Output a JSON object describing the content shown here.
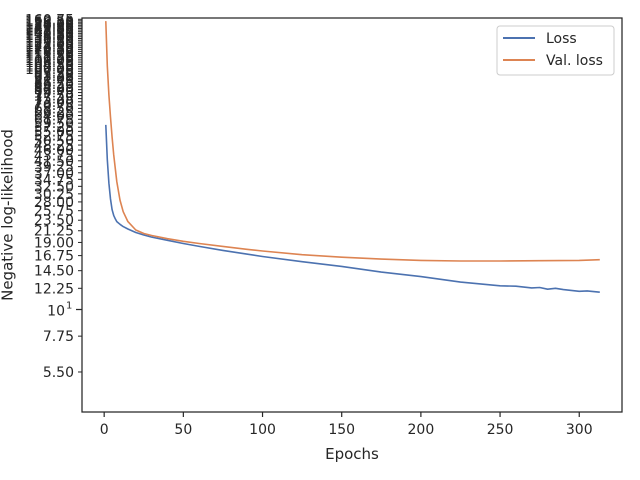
{
  "chart_data": {
    "type": "line",
    "title": "",
    "xlabel": "Epochs",
    "ylabel": "Negative log-likelihood",
    "xscale": "linear",
    "yscale": "log",
    "xlim": [
      -14,
      327
    ],
    "ylim": [
      3.75,
      162.75
    ],
    "xticks": [
      {
        "value": 0,
        "label": "0"
      },
      {
        "value": 50,
        "label": "50"
      },
      {
        "value": 100,
        "label": "100"
      },
      {
        "value": 150,
        "label": "150"
      },
      {
        "value": 200,
        "label": "200"
      },
      {
        "value": 250,
        "label": "250"
      },
      {
        "value": 300,
        "label": "300"
      }
    ],
    "yticks": [
      {
        "value": 5.5,
        "label": "5.50"
      },
      {
        "value": 7.75,
        "label": "7.75"
      },
      {
        "value": 12.25,
        "label": "12.25"
      },
      {
        "value": 14.5,
        "label": "14.50"
      },
      {
        "value": 16.75,
        "label": "16.75"
      },
      {
        "value": 19.0,
        "label": "19.00"
      },
      {
        "value": 21.25,
        "label": "21.25"
      },
      {
        "value": 23.5,
        "label": "23.50"
      },
      {
        "value": 25.75,
        "label": "25.75"
      },
      {
        "value": 28.0,
        "label": "28.00"
      },
      {
        "value": 30.25,
        "label": "30.25"
      },
      {
        "value": 32.5,
        "label": "32.50"
      },
      {
        "value": 34.75,
        "label": "34.75"
      },
      {
        "value": 37.0,
        "label": "37.00"
      },
      {
        "value": 39.25,
        "label": "39.25"
      },
      {
        "value": 41.5,
        "label": "41.50"
      },
      {
        "value": 43.75,
        "label": "43.75"
      },
      {
        "value": 46.0,
        "label": "46.00"
      },
      {
        "value": 48.25,
        "label": "48.25"
      },
      {
        "value": 50.5,
        "label": "50.50"
      },
      {
        "value": 52.75,
        "label": "52.75"
      },
      {
        "value": 55.0,
        "label": "55.00"
      },
      {
        "value": 57.25,
        "label": "57.25"
      },
      {
        "value": 59.5,
        "label": "59.50"
      },
      {
        "value": 61.75,
        "label": "61.75"
      },
      {
        "value": 64.0,
        "label": "64.00"
      },
      {
        "value": 66.25,
        "label": "66.25"
      },
      {
        "value": 68.5,
        "label": "68.50"
      },
      {
        "value": 70.75,
        "label": "70.75"
      },
      {
        "value": 73.0,
        "label": "73.00"
      },
      {
        "value": 75.25,
        "label": "75.25"
      },
      {
        "value": 77.5,
        "label": "77.50"
      },
      {
        "value": 79.75,
        "label": "79.75"
      },
      {
        "value": 82.0,
        "label": "82.00"
      },
      {
        "value": 84.25,
        "label": "84.25"
      },
      {
        "value": 86.5,
        "label": "86.50"
      },
      {
        "value": 88.75,
        "label": "88.75"
      },
      {
        "value": 91.0,
        "label": "91.00"
      },
      {
        "value": 93.25,
        "label": "93.25"
      },
      {
        "value": 95.5,
        "label": "95.50"
      },
      {
        "value": 97.75,
        "label": "97.75"
      },
      {
        "value": 100.0,
        "label": "100.00"
      },
      {
        "value": 102.25,
        "label": "102.25"
      },
      {
        "value": 104.5,
        "label": "104.50"
      },
      {
        "value": 106.75,
        "label": "106.75"
      },
      {
        "value": 109.0,
        "label": "109.00"
      },
      {
        "value": 111.25,
        "label": "111.25"
      },
      {
        "value": 113.5,
        "label": "113.50"
      },
      {
        "value": 115.75,
        "label": "115.75"
      },
      {
        "value": 118.0,
        "label": "118.00"
      },
      {
        "value": 120.25,
        "label": "120.25"
      },
      {
        "value": 122.5,
        "label": "122.50"
      },
      {
        "value": 124.75,
        "label": "124.75"
      },
      {
        "value": 127.0,
        "label": "127.00"
      },
      {
        "value": 129.25,
        "label": "129.25"
      },
      {
        "value": 131.5,
        "label": "131.50"
      },
      {
        "value": 133.75,
        "label": "133.75"
      },
      {
        "value": 136.0,
        "label": "136.00"
      },
      {
        "value": 138.25,
        "label": "138.25"
      },
      {
        "value": 140.5,
        "label": "140.50"
      },
      {
        "value": 142.75,
        "label": "142.75"
      },
      {
        "value": 145.0,
        "label": "145.00"
      },
      {
        "value": 147.25,
        "label": "147.25"
      },
      {
        "value": 149.5,
        "label": "149.50"
      },
      {
        "value": 151.75,
        "label": "151.75"
      },
      {
        "value": 154.0,
        "label": "154.00"
      },
      {
        "value": 156.25,
        "label": "156.25"
      },
      {
        "value": 158.5,
        "label": "158.50"
      },
      {
        "value": 160.75,
        "label": "160.75"
      }
    ],
    "y_decade_label": {
      "value": 10,
      "base": "10",
      "exponent": "1"
    },
    "grid": false,
    "legend": {
      "position": "top-right"
    },
    "series": [
      {
        "name": "Loss",
        "color": "#4c72b0",
        "x": [
          1,
          2,
          3,
          4,
          5,
          6,
          7,
          8,
          10,
          12,
          15,
          20,
          25,
          30,
          40,
          50,
          60,
          75,
          90,
          100,
          125,
          150,
          175,
          200,
          225,
          250,
          260,
          270,
          275,
          280,
          285,
          290,
          300,
          305,
          313
        ],
        "y": [
          58.5,
          42.0,
          33.5,
          28.8,
          26.0,
          24.6,
          23.8,
          23.2,
          22.6,
          22.1,
          21.6,
          20.9,
          20.4,
          20.0,
          19.4,
          18.8,
          18.3,
          17.6,
          17.0,
          16.6,
          15.8,
          15.1,
          14.3,
          13.7,
          13.0,
          12.55,
          12.5,
          12.3,
          12.35,
          12.15,
          12.25,
          12.1,
          11.9,
          11.95,
          11.8
        ]
      },
      {
        "name": "Val. loss",
        "color": "#dd8452",
        "x": [
          1,
          2,
          3,
          4,
          5,
          6,
          7,
          8,
          10,
          12,
          15,
          20,
          25,
          30,
          40,
          50,
          60,
          75,
          90,
          100,
          125,
          150,
          175,
          200,
          225,
          250,
          275,
          300,
          313
        ],
        "y": [
          158.0,
          103.0,
          78.0,
          63.0,
          52.0,
          44.0,
          38.5,
          34.0,
          28.5,
          25.5,
          23.2,
          21.4,
          20.7,
          20.3,
          19.7,
          19.2,
          18.8,
          18.3,
          17.8,
          17.5,
          16.9,
          16.5,
          16.2,
          16.0,
          15.9,
          15.9,
          15.95,
          16.0,
          16.1
        ]
      }
    ]
  }
}
